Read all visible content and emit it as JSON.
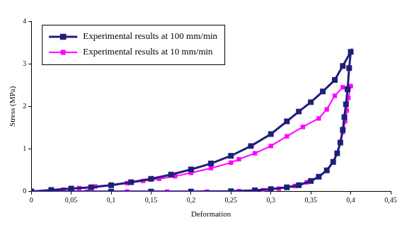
{
  "chart_data": {
    "type": "line",
    "x_label": "Deformation",
    "y_label": "Stress (MPa)",
    "xlim": [
      0,
      0.45
    ],
    "ylim": [
      0,
      4
    ],
    "xticks": [
      0,
      {
        "value": 0.05,
        "label": "0,05"
      },
      {
        "value": 0.1,
        "label": "0,1"
      },
      {
        "value": 0.15,
        "label": "0,15"
      },
      {
        "value": 0.2,
        "label": "0,2"
      },
      {
        "value": 0.25,
        "label": "0,25"
      },
      {
        "value": 0.3,
        "label": "0,3"
      },
      {
        "value": 0.35,
        "label": "0,35"
      },
      {
        "value": 0.4,
        "label": "0,4"
      },
      {
        "value": 0.45,
        "label": "0,45"
      }
    ],
    "yticks": [
      0,
      1,
      2,
      3,
      4
    ],
    "grid": false,
    "legend": "upper left",
    "series": [
      {
        "name": "Experimental results at 100 mm/min",
        "color": "#1f1f7a",
        "marker": "square",
        "line_style": "solid",
        "x": [
          0,
          0.025,
          0.05,
          0.075,
          0.1,
          0.125,
          0.15,
          0.175,
          0.2,
          0.225,
          0.25,
          0.275,
          0.3,
          0.32,
          0.335,
          0.35,
          0.365,
          0.38,
          0.39,
          0.4,
          0.398,
          0.396,
          0.394,
          0.392,
          0.39,
          0.387,
          0.383,
          0.378,
          0.37,
          0.36,
          0.35,
          0.335,
          0.32,
          0.3,
          0.28,
          0.25,
          0.2,
          0.15,
          0.1,
          0.05,
          0
        ],
        "values": [
          0,
          0.04,
          0.07,
          0.1,
          0.15,
          0.22,
          0.3,
          0.4,
          0.52,
          0.66,
          0.84,
          1.07,
          1.35,
          1.65,
          1.88,
          2.1,
          2.35,
          2.62,
          2.95,
          3.28,
          2.9,
          2.4,
          2.05,
          1.75,
          1.45,
          1.15,
          0.9,
          0.7,
          0.5,
          0.35,
          0.25,
          0.15,
          0.1,
          0.06,
          0.03,
          0.01,
          0,
          0,
          0,
          0,
          0
        ]
      },
      {
        "name": "Experimental results at 10 mm/min",
        "color": "#ff00ff",
        "marker": "square",
        "line_style": "solid",
        "x": [
          0,
          0.04,
          0.06,
          0.08,
          0.1,
          0.12,
          0.14,
          0.16,
          0.18,
          0.2,
          0.225,
          0.25,
          0.26,
          0.28,
          0.3,
          0.32,
          0.34,
          0.36,
          0.37,
          0.38,
          0.39,
          0.4,
          0.397,
          0.395,
          0.393,
          0.39,
          0.387,
          0.383,
          0.378,
          0.37,
          0.36,
          0.345,
          0.33,
          0.31,
          0.29,
          0.26,
          0.22,
          0.17,
          0.12,
          0.07,
          0.03,
          0
        ],
        "values": [
          0,
          0.05,
          0.08,
          0.12,
          0.16,
          0.2,
          0.25,
          0.3,
          0.36,
          0.44,
          0.55,
          0.68,
          0.76,
          0.9,
          1.07,
          1.3,
          1.52,
          1.72,
          1.93,
          2.25,
          2.45,
          2.48,
          2.2,
          1.9,
          1.65,
          1.4,
          1.15,
          0.9,
          0.68,
          0.5,
          0.35,
          0.22,
          0.13,
          0.07,
          0.03,
          0.01,
          0,
          0,
          0,
          0,
          0,
          0
        ]
      }
    ]
  }
}
